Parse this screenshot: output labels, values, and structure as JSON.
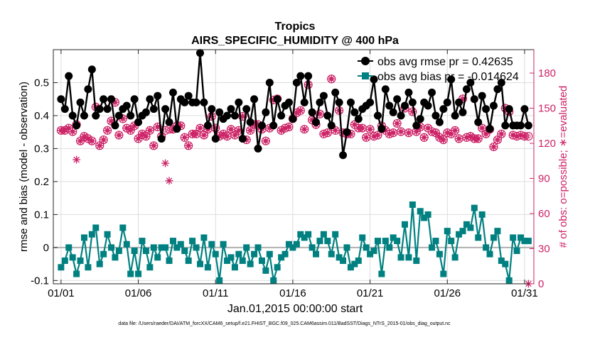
{
  "chart_data": {
    "type": "line",
    "title": "Tropics",
    "subtitle": "AIRS_SPECIFIC_HUMIDITY @ 400 hPa",
    "xlabel": "Jan.01,2015 00:00:00 start",
    "ylabel": "rmse and bias (model - observation)",
    "ylabel_right": "# of obs: o=possible; ∗=evaluated",
    "footer": "data file: /Users/raeder/DAI/ATM_forcXX/CAM6_setup/f.e21.FHIST_BGC.f09_025.CAM6assim.011/BadSST/Diags_NTrS_2015-01/obs_diag_output.nc",
    "xlim": [
      0.5,
      31.6
    ],
    "ylim": [
      -0.11,
      0.6
    ],
    "ylim_right": [
      0,
      200
    ],
    "x_ticks": [
      1,
      6,
      11,
      16,
      21,
      26,
      31
    ],
    "x_tick_labels": [
      "01/01",
      "01/06",
      "01/11",
      "01/16",
      "01/21",
      "01/26",
      "01/31"
    ],
    "y_ticks": [
      -0.1,
      0,
      0.1,
      0.2,
      0.3,
      0.4,
      0.5
    ],
    "y_tick_labels": [
      "-0.1",
      "0",
      "0.1",
      "0.2",
      "0.3",
      "0.4",
      "0.5"
    ],
    "y_ticks_right": [
      0,
      30,
      60,
      90,
      120,
      150,
      180
    ],
    "y_tick_labels_right": [
      "0",
      "30",
      "60",
      "90",
      "120",
      "150",
      "180"
    ],
    "zero_line": 0,
    "series": [
      {
        "name": "obs avg rmse",
        "legend": "obs avg rmse pr = 0.42635",
        "axis": "left",
        "color": "#000000",
        "marker": "circle",
        "x": [
          1.0,
          1.25,
          1.5,
          1.75,
          2.0,
          2.25,
          2.5,
          2.75,
          3.0,
          3.25,
          3.5,
          3.75,
          4.0,
          4.25,
          4.5,
          4.75,
          5.0,
          5.25,
          5.5,
          5.75,
          6.0,
          6.25,
          6.5,
          6.75,
          7.0,
          7.25,
          7.5,
          7.75,
          8.0,
          8.25,
          8.5,
          8.75,
          9.0,
          9.25,
          9.5,
          9.75,
          10.0,
          10.25,
          10.5,
          10.75,
          11.0,
          11.25,
          11.5,
          11.75,
          12.0,
          12.25,
          12.5,
          12.75,
          13.0,
          13.25,
          13.5,
          13.75,
          14.0,
          14.25,
          14.5,
          14.75,
          15.0,
          15.25,
          15.5,
          15.75,
          16.0,
          16.25,
          16.5,
          16.75,
          17.0,
          17.25,
          17.5,
          17.75,
          18.0,
          18.25,
          18.5,
          18.75,
          19.0,
          19.25,
          19.5,
          19.75,
          20.0,
          20.25,
          20.5,
          20.75,
          21.0,
          21.25,
          21.5,
          21.75,
          22.0,
          22.25,
          22.5,
          22.75,
          23.0,
          23.25,
          23.5,
          23.75,
          24.0,
          24.25,
          24.5,
          24.75,
          25.0,
          25.25,
          25.5,
          25.75,
          26.0,
          26.25,
          26.5,
          26.75,
          27.0,
          27.25,
          27.5,
          27.75,
          28.0,
          28.25,
          28.5,
          28.75,
          29.0,
          29.25,
          29.5,
          29.75,
          30.0,
          30.25,
          30.5,
          30.75,
          31.0,
          31.25
        ],
        "values": [
          0.45,
          0.42,
          0.52,
          0.4,
          0.37,
          0.44,
          0.4,
          0.48,
          0.54,
          0.4,
          0.42,
          0.45,
          0.42,
          0.45,
          0.37,
          0.4,
          0.42,
          0.43,
          0.4,
          0.45,
          0.38,
          0.4,
          0.41,
          0.45,
          0.42,
          0.46,
          0.33,
          0.42,
          0.38,
          0.47,
          0.36,
          0.45,
          0.44,
          0.46,
          0.44,
          0.44,
          0.59,
          0.44,
          0.37,
          0.42,
          0.33,
          0.41,
          0.39,
          0.4,
          0.42,
          0.4,
          0.44,
          0.33,
          0.42,
          0.38,
          0.45,
          0.3,
          0.37,
          0.41,
          0.5,
          0.37,
          0.45,
          0.4,
          0.43,
          0.44,
          0.39,
          0.5,
          0.52,
          0.44,
          0.52,
          0.41,
          0.38,
          0.44,
          0.46,
          0.4,
          0.37,
          0.47,
          0.44,
          0.28,
          0.35,
          0.44,
          0.41,
          0.39,
          0.42,
          0.43,
          0.44,
          0.51,
          0.4,
          0.36,
          0.48,
          0.43,
          0.41,
          0.45,
          0.4,
          0.43,
          0.47,
          0.44,
          0.37,
          0.39,
          0.44,
          0.43,
          0.47,
          0.4,
          0.38,
          0.42,
          0.44,
          0.51,
          0.4,
          0.44,
          0.41,
          0.48,
          0.5,
          0.45,
          0.38,
          0.46,
          0.42,
          0.36,
          0.43,
          0.48,
          0.5,
          0.37,
          0.42,
          0.37,
          0.37,
          0.37,
          0.42,
          0.37
        ]
      },
      {
        "name": "obs avg bias",
        "legend": "obs avg bias pr = -0.014624",
        "axis": "left",
        "color": "#008080",
        "marker": "square",
        "values": [
          -0.06,
          -0.04,
          0.0,
          -0.03,
          -0.08,
          -0.04,
          0.03,
          -0.06,
          0.04,
          0.06,
          -0.05,
          -0.02,
          0.04,
          0.0,
          -0.03,
          -0.01,
          0.06,
          0.01,
          -0.08,
          -0.01,
          -0.08,
          0.02,
          -0.01,
          -0.06,
          0.0,
          -0.03,
          0.0,
          0.0,
          -0.04,
          0.02,
          0.0,
          0.01,
          -0.01,
          -0.04,
          0.02,
          0.0,
          -0.05,
          0.03,
          -0.06,
          0.01,
          -0.02,
          -0.1,
          0.01,
          -0.04,
          -0.03,
          -0.06,
          -0.02,
          -0.04,
          0.0,
          -0.05,
          -0.02,
          0.0,
          -0.04,
          -0.07,
          -0.02,
          -0.1,
          -0.06,
          -0.03,
          -0.02,
          0.01,
          0.0,
          0.01,
          0.04,
          0.03,
          0.04,
          0.0,
          -0.02,
          0.02,
          0.04,
          0.02,
          -0.02,
          0.04,
          -0.03,
          -0.04,
          0.0,
          -0.06,
          -0.05,
          -0.04,
          0.03,
          0.0,
          -0.02,
          -0.01,
          0.02,
          -0.08,
          0.02,
          0.0,
          0.03,
          0.02,
          -0.03,
          0.07,
          -0.03,
          0.13,
          -0.04,
          0.11,
          0.09,
          0.1,
          0.0,
          0.02,
          -0.02,
          -0.08,
          0.05,
          0.02,
          -0.03,
          0.04,
          0.05,
          0.07,
          0.06,
          0.12,
          0.03,
          0.1,
          0.0,
          -0.02,
          0.03,
          0.05,
          -0.04,
          -0.05,
          -0.1,
          0.03,
          -0.01,
          0.03,
          0.02,
          0.02
        ]
      },
      {
        "name": "# of obs possible",
        "axis": "right",
        "color": "#cc2266",
        "marker": "circle-open",
        "values": [
          131,
          131,
          133,
          130,
          136,
          122,
          126,
          124,
          122,
          151,
          118,
          123,
          131,
          139,
          155,
          127,
          141,
          133,
          131,
          135,
          124,
          128,
          126,
          131,
          118,
          134,
          126,
          131,
          132,
          132,
          135,
          135,
          125,
          118,
          128,
          128,
          133,
          127,
          132,
          143,
          133,
          126,
          128,
          126,
          132,
          127,
          131,
          143,
          123,
          131,
          136,
          136,
          132,
          122,
          133,
          157,
          158,
          131,
          133,
          134,
          141,
          146,
          148,
          132,
          170,
          140,
          136,
          145,
          128,
          129,
          175,
          131,
          148,
          129,
          128,
          128,
          136,
          133,
          133,
          125,
          132,
          126,
          127,
          135,
          131,
          128,
          129,
          137,
          130,
          150,
          129,
          147,
          130,
          134,
          125,
          133,
          130,
          129,
          125,
          123,
          129,
          128,
          131,
          124,
          158,
          125,
          126,
          124,
          124,
          133,
          128,
          132,
          117,
          123,
          128,
          150,
          147,
          127,
          126,
          127,
          126,
          126
        ]
      },
      {
        "name": "# of obs evaluated",
        "axis": "right",
        "color": "#cc2266",
        "marker": "asterisk",
        "values": [
          131,
          131,
          133,
          130,
          106,
          122,
          126,
          124,
          122,
          151,
          118,
          123,
          131,
          139,
          155,
          127,
          141,
          133,
          131,
          135,
          124,
          128,
          126,
          131,
          118,
          134,
          126,
          103,
          88,
          132,
          135,
          135,
          125,
          118,
          128,
          128,
          133,
          127,
          132,
          143,
          133,
          126,
          128,
          126,
          132,
          127,
          131,
          143,
          123,
          131,
          136,
          136,
          132,
          122,
          133,
          157,
          158,
          131,
          133,
          134,
          141,
          146,
          148,
          132,
          170,
          140,
          136,
          145,
          128,
          129,
          175,
          131,
          148,
          129,
          128,
          128,
          136,
          133,
          133,
          125,
          132,
          126,
          127,
          135,
          131,
          128,
          129,
          137,
          130,
          150,
          129,
          147,
          130,
          134,
          125,
          133,
          130,
          129,
          125,
          123,
          129,
          128,
          131,
          124,
          158,
          125,
          126,
          124,
          124,
          133,
          128,
          132,
          117,
          123,
          128,
          150,
          147,
          127,
          126,
          127,
          126,
          0
        ]
      }
    ],
    "legend_position": "top-right"
  }
}
